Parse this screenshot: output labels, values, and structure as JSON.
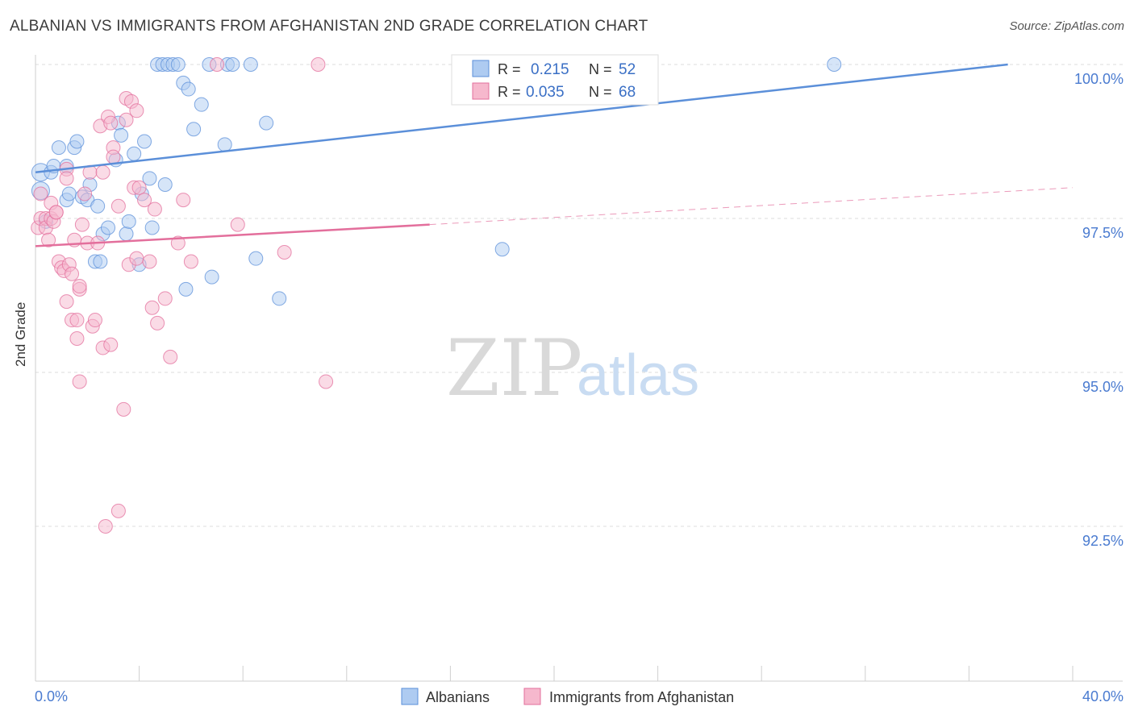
{
  "title": "ALBANIAN VS IMMIGRANTS FROM AFGHANISTAN 2ND GRADE CORRELATION CHART",
  "source": "Source: ZipAtlas.com",
  "watermark": {
    "part1": "ZIP",
    "part2": "atlas"
  },
  "legend_top": [
    {
      "r_label": "R =",
      "r_value": "0.215",
      "n_label": "N =",
      "n_value": "52"
    },
    {
      "r_label": "R =",
      "r_value": "0.035",
      "n_label": "N =",
      "n_value": "68"
    }
  ],
  "chart_data": {
    "type": "scatter",
    "title": "ALBANIAN VS IMMIGRANTS FROM AFGHANISTAN 2ND GRADE CORRELATION CHART",
    "xlabel": "",
    "ylabel": "2nd Grade",
    "xlim": [
      0,
      40
    ],
    "ylim": [
      90.5,
      100.5
    ],
    "x_tick_labels": [
      "0.0%",
      "40.0%"
    ],
    "y_ticks": [
      {
        "value": 92.5,
        "label": "92.5%"
      },
      {
        "value": 95.0,
        "label": "95.0%"
      },
      {
        "value": 97.5,
        "label": "97.5%"
      },
      {
        "value": 100.0,
        "label": "100.0%"
      }
    ],
    "grid": true,
    "legend_position": "bottom-center",
    "series": [
      {
        "name": "Albanians",
        "color": "#5b8fd9",
        "fill": "#aecbf1",
        "trend": {
          "x": [
            0,
            37.5
          ],
          "y": [
            98.25,
            100.0
          ],
          "dashed_to": null
        },
        "points": [
          [
            0.2,
            98.25
          ],
          [
            0.2,
            97.95
          ],
          [
            0.4,
            97.45
          ],
          [
            0.6,
            98.25
          ],
          [
            0.7,
            98.35
          ],
          [
            0.9,
            98.65
          ],
          [
            1.2,
            98.35
          ],
          [
            1.2,
            97.8
          ],
          [
            1.3,
            97.9
          ],
          [
            1.5,
            98.65
          ],
          [
            1.6,
            98.75
          ],
          [
            1.8,
            97.85
          ],
          [
            2.0,
            97.8
          ],
          [
            2.1,
            98.05
          ],
          [
            2.3,
            96.8
          ],
          [
            2.4,
            97.7
          ],
          [
            2.5,
            96.8
          ],
          [
            2.6,
            97.25
          ],
          [
            2.8,
            97.35
          ],
          [
            3.1,
            98.45
          ],
          [
            3.2,
            99.05
          ],
          [
            3.3,
            98.85
          ],
          [
            3.5,
            97.25
          ],
          [
            3.6,
            97.45
          ],
          [
            3.8,
            98.55
          ],
          [
            4.0,
            96.75
          ],
          [
            4.1,
            97.9
          ],
          [
            4.2,
            98.75
          ],
          [
            4.4,
            98.15
          ],
          [
            4.5,
            97.35
          ],
          [
            4.7,
            100.0
          ],
          [
            4.9,
            100.0
          ],
          [
            5.0,
            98.05
          ],
          [
            5.1,
            100.0
          ],
          [
            5.3,
            100.0
          ],
          [
            5.5,
            100.0
          ],
          [
            5.7,
            99.7
          ],
          [
            5.8,
            96.35
          ],
          [
            5.9,
            99.6
          ],
          [
            6.1,
            98.95
          ],
          [
            6.4,
            99.35
          ],
          [
            6.7,
            100.0
          ],
          [
            6.8,
            96.55
          ],
          [
            7.3,
            98.7
          ],
          [
            7.4,
            100.0
          ],
          [
            7.6,
            100.0
          ],
          [
            8.3,
            100.0
          ],
          [
            8.5,
            96.85
          ],
          [
            8.9,
            99.05
          ],
          [
            9.4,
            96.2
          ],
          [
            18.0,
            97.0
          ],
          [
            30.8,
            100.0
          ]
        ]
      },
      {
        "name": "Immigrants from Afghanistan",
        "color": "#e36f9c",
        "fill": "#f6b8cd",
        "trend": {
          "x": [
            0,
            15.2
          ],
          "y": [
            97.05,
            97.4
          ],
          "dashed_to": [
            40,
            98.0
          ]
        },
        "points": [
          [
            0.1,
            97.35
          ],
          [
            0.2,
            97.5
          ],
          [
            0.2,
            97.9
          ],
          [
            0.4,
            97.5
          ],
          [
            0.4,
            97.35
          ],
          [
            0.5,
            97.15
          ],
          [
            0.6,
            97.5
          ],
          [
            0.6,
            97.75
          ],
          [
            0.7,
            97.45
          ],
          [
            0.8,
            97.6
          ],
          [
            0.8,
            97.6
          ],
          [
            0.9,
            96.8
          ],
          [
            1.0,
            96.7
          ],
          [
            1.1,
            96.65
          ],
          [
            1.2,
            98.3
          ],
          [
            1.2,
            98.15
          ],
          [
            1.2,
            96.15
          ],
          [
            1.3,
            96.75
          ],
          [
            1.4,
            95.85
          ],
          [
            1.4,
            96.6
          ],
          [
            1.5,
            97.15
          ],
          [
            1.6,
            95.55
          ],
          [
            1.6,
            95.85
          ],
          [
            1.7,
            96.35
          ],
          [
            1.7,
            96.4
          ],
          [
            1.7,
            94.85
          ],
          [
            1.8,
            97.4
          ],
          [
            1.9,
            97.9
          ],
          [
            2.0,
            97.1
          ],
          [
            2.1,
            98.25
          ],
          [
            2.2,
            95.75
          ],
          [
            2.3,
            95.85
          ],
          [
            2.4,
            97.1
          ],
          [
            2.5,
            99.0
          ],
          [
            2.6,
            98.25
          ],
          [
            2.6,
            95.4
          ],
          [
            2.7,
            92.5
          ],
          [
            2.8,
            99.15
          ],
          [
            2.9,
            99.05
          ],
          [
            2.9,
            95.45
          ],
          [
            3.0,
            98.65
          ],
          [
            3.0,
            98.5
          ],
          [
            3.2,
            92.75
          ],
          [
            3.2,
            97.7
          ],
          [
            3.4,
            94.4
          ],
          [
            3.5,
            99.45
          ],
          [
            3.5,
            99.1
          ],
          [
            3.6,
            96.75
          ],
          [
            3.7,
            99.4
          ],
          [
            3.8,
            98.0
          ],
          [
            3.9,
            96.85
          ],
          [
            3.9,
            99.25
          ],
          [
            4.0,
            98.0
          ],
          [
            4.2,
            97.8
          ],
          [
            4.4,
            96.8
          ],
          [
            4.5,
            96.05
          ],
          [
            4.6,
            97.65
          ],
          [
            4.7,
            95.8
          ],
          [
            5.0,
            96.2
          ],
          [
            5.2,
            95.25
          ],
          [
            5.5,
            97.1
          ],
          [
            5.7,
            97.8
          ],
          [
            6.0,
            96.8
          ],
          [
            7.0,
            100.0
          ],
          [
            7.8,
            97.4
          ],
          [
            10.9,
            100.0
          ],
          [
            11.2,
            94.85
          ],
          [
            9.6,
            96.95
          ]
        ]
      }
    ]
  }
}
